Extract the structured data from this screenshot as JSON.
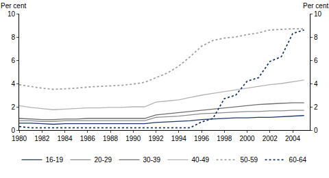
{
  "chart_data": {
    "type": "line",
    "ylabel": "Per cent",
    "y2label": "Per cent",
    "x": [
      1980,
      1981,
      1982,
      1983,
      1984,
      1985,
      1986,
      1987,
      1988,
      1989,
      1990,
      1991,
      1992,
      1993,
      1994,
      1995,
      1996,
      1997,
      1998,
      1999,
      2000,
      2001,
      2002,
      2003,
      2004,
      2005
    ],
    "xlim": [
      1980,
      2005.5
    ],
    "xticks": [
      1980,
      1982,
      1984,
      1986,
      1988,
      1990,
      1992,
      1994,
      1996,
      1998,
      2000,
      2002,
      2004
    ],
    "ylim": [
      0,
      10
    ],
    "yticks": [
      0,
      2,
      4,
      6,
      8,
      10
    ],
    "y2lim": [
      0,
      10
    ],
    "y2ticks": [
      0,
      2,
      4,
      6,
      8,
      10
    ],
    "grid": false,
    "legend": "bottom",
    "series": [
      {
        "name": "16-19",
        "color": "#1f3864",
        "line_style": "solid",
        "values": [
          0.6,
          0.6,
          0.55,
          0.5,
          0.55,
          0.55,
          0.55,
          0.55,
          0.55,
          0.55,
          0.55,
          0.55,
          0.65,
          0.7,
          0.75,
          0.8,
          0.9,
          0.95,
          1.0,
          1.05,
          1.05,
          1.1,
          1.1,
          1.15,
          1.2,
          1.25
        ]
      },
      {
        "name": "20-29",
        "color": "#8c8c8c",
        "line_style": "solid",
        "values": [
          0.8,
          0.8,
          0.75,
          0.75,
          0.8,
          0.8,
          0.8,
          0.8,
          0.8,
          0.8,
          0.8,
          0.8,
          1.1,
          1.15,
          1.2,
          1.3,
          1.4,
          1.45,
          1.5,
          1.55,
          1.6,
          1.6,
          1.65,
          1.65,
          1.7,
          1.7
        ]
      },
      {
        "name": "30-39",
        "color": "#6e6e6e",
        "line_style": "solid",
        "values": [
          1.0,
          0.95,
          0.9,
          0.9,
          0.95,
          0.95,
          1.0,
          1.0,
          1.0,
          1.0,
          1.0,
          1.0,
          1.3,
          1.4,
          1.5,
          1.6,
          1.7,
          1.8,
          1.9,
          2.0,
          2.1,
          2.2,
          2.25,
          2.3,
          2.35,
          2.35
        ]
      },
      {
        "name": "40-49",
        "color": "#b4b4b4",
        "line_style": "solid",
        "values": [
          2.1,
          1.95,
          1.85,
          1.75,
          1.8,
          1.85,
          1.9,
          1.9,
          1.95,
          1.95,
          2.0,
          2.0,
          2.4,
          2.5,
          2.6,
          2.8,
          3.0,
          3.15,
          3.3,
          3.45,
          3.6,
          3.75,
          3.9,
          4.0,
          4.15,
          4.3
        ]
      },
      {
        "name": "50-59",
        "color": "#a0a0a0",
        "line_style": "dot",
        "values": [
          3.9,
          3.75,
          3.6,
          3.5,
          3.55,
          3.6,
          3.7,
          3.75,
          3.8,
          3.85,
          3.95,
          4.1,
          4.5,
          4.9,
          5.5,
          6.3,
          7.2,
          7.7,
          7.9,
          8.0,
          8.2,
          8.35,
          8.6,
          8.65,
          8.7,
          8.7
        ]
      },
      {
        "name": "60-64",
        "color": "#1f3864",
        "line_style": "dot",
        "values": [
          0.3,
          0.2,
          0.2,
          0.2,
          0.2,
          0.2,
          0.2,
          0.2,
          0.2,
          0.2,
          0.2,
          0.2,
          0.2,
          0.2,
          0.2,
          0.2,
          0.7,
          1.0,
          2.7,
          3.0,
          4.2,
          4.5,
          5.9,
          6.3,
          8.3,
          8.6
        ]
      }
    ]
  }
}
